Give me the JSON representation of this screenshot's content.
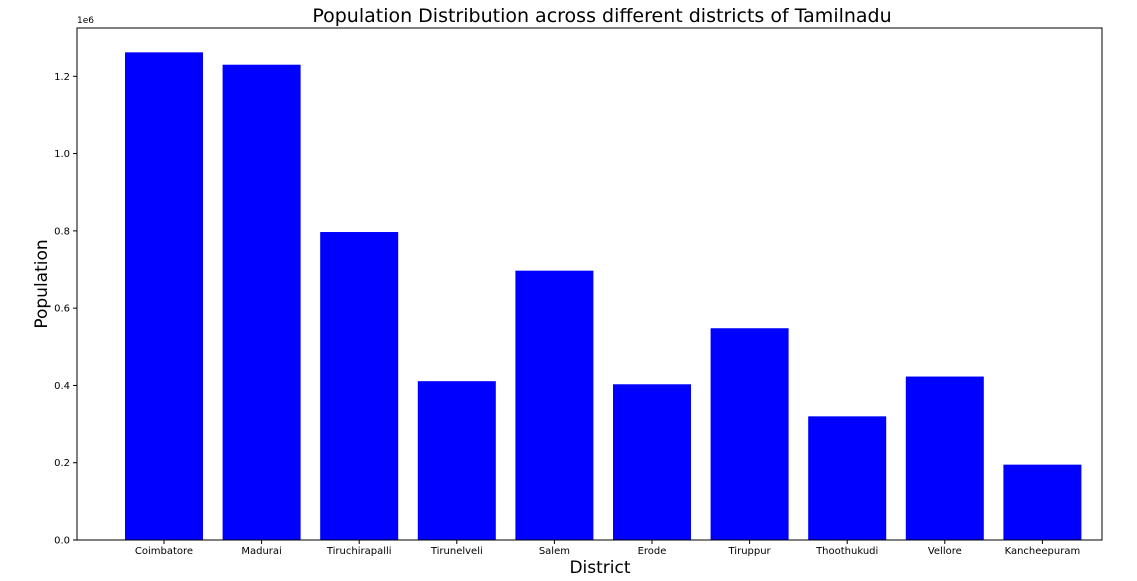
{
  "chart_data": {
    "type": "bar",
    "title": "Population Distribution across different districts of Tamilnadu",
    "xlabel": "District",
    "ylabel": "Population",
    "y_offset_label": "1e6",
    "categories": [
      "Coimbatore",
      "Madurai",
      "Tiruchirapalli",
      "Tirunelveli",
      "Salem",
      "Erode",
      "Tiruppur",
      "Thoothukudi",
      "Vellore",
      "Kancheepuram"
    ],
    "values": [
      1262000,
      1230000,
      797000,
      411000,
      697000,
      403000,
      548000,
      320000,
      423000,
      195000
    ],
    "ylim": [
      0,
      1325000
    ],
    "yticks": [
      0,
      200000,
      400000,
      600000,
      800000,
      1000000,
      1200000
    ],
    "ytick_labels": [
      "0.0",
      "0.2",
      "0.4",
      "0.6",
      "0.8",
      "1.0",
      "1.2"
    ],
    "bar_color": "#0000ff",
    "grid": false,
    "legend": "none"
  }
}
